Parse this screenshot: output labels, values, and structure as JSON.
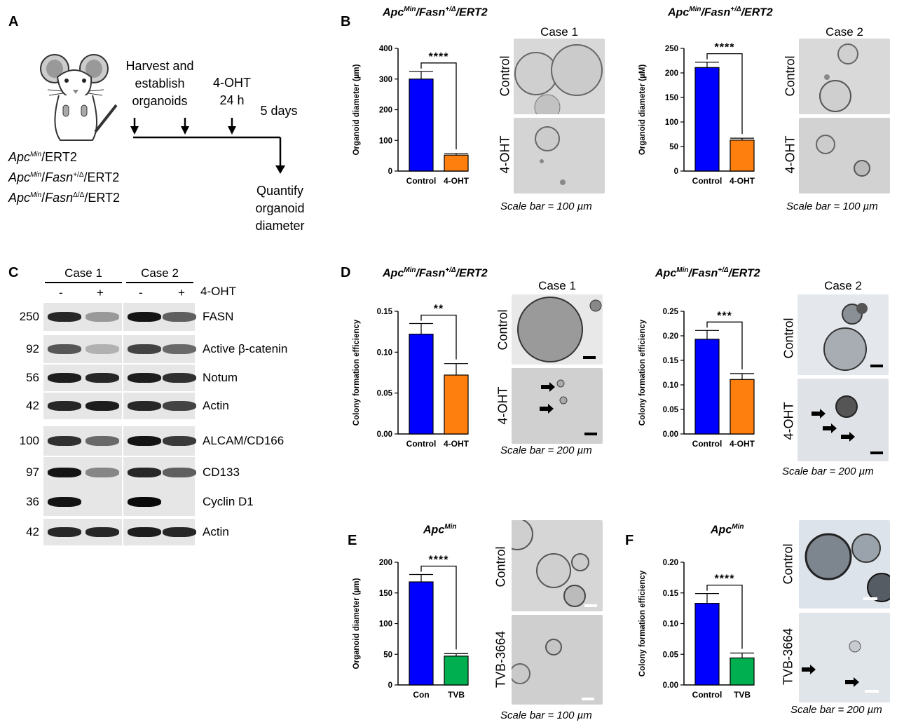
{
  "panels": {
    "A": "A",
    "B": "B",
    "C": "C",
    "D": "D",
    "E": "E",
    "F": "F"
  },
  "panel_a": {
    "steps": {
      "harvest": "Harvest and establish organoids",
      "oht": "4-OHT 24 h",
      "days": "5 days",
      "quantify": "Quantify organoid diameter"
    },
    "genotypes": [
      {
        "base": "Apc",
        "sup": "Min",
        "mid": "/ERT2",
        "fasn": "",
        "fsup": ""
      },
      {
        "base": "Apc",
        "sup": "Min",
        "mid": "/",
        "fasn": "Fasn",
        "fsup": "+/Δ",
        "tail": "/ERT2"
      },
      {
        "base": "Apc",
        "sup": "Min",
        "mid": "/",
        "fasn": "Fasn",
        "fsup": "Δ/Δ",
        "tail": "/ERT2"
      }
    ]
  },
  "titles": {
    "b1": {
      "a": "Apc",
      "as": "Min",
      "b": "/Fasn",
      "bs": "+/Δ",
      "c": "/ERT2"
    },
    "b2": {
      "a": "Apc",
      "as": "Min",
      "b": "/Fasn",
      "bs": "+/Δ",
      "c": "/ERT2"
    },
    "d1": {
      "a": "Apc",
      "as": "Min",
      "b": "/Fasn",
      "bs": "+/Δ",
      "c": "/ERT2"
    },
    "d2": {
      "a": "Apc",
      "as": "Min",
      "b": "/Fasn",
      "bs": "+/Δ",
      "c": "/ERT2"
    },
    "e": {
      "a": "Apc",
      "as": "Min"
    },
    "f": {
      "a": "Apc",
      "as": "Min"
    }
  },
  "cases": {
    "b1": "Case 1",
    "b2": "Case 2",
    "d1": "Case 1",
    "d2": "Case 2",
    "c1": "Case 1",
    "c2": "Case 2"
  },
  "micro_labels": {
    "control": "Control",
    "oht": "4-OHT",
    "tvb": "TVB-3664"
  },
  "scale_bars": {
    "b1": "Scale bar = 100 µm",
    "b2": "Scale bar = 100 µm",
    "d1": "Scale bar = 200 µm",
    "d2": "Scale bar = 200 µm",
    "e": "Scale bar = 100 µm",
    "f": "Scale bar = 200 µm"
  },
  "panel_c": {
    "signs": [
      "-",
      "+",
      "-",
      "+"
    ],
    "treatment": "4-OHT",
    "rows": [
      {
        "mw": "250",
        "label": "FASN",
        "i": [
          0.85,
          0.25,
          0.95,
          0.55
        ]
      },
      {
        "mw": "92",
        "label": "Active β-catenin",
        "i": [
          0.6,
          0.12,
          0.7,
          0.5
        ]
      },
      {
        "mw": "56",
        "label": "Notum",
        "i": [
          0.9,
          0.85,
          0.9,
          0.8
        ]
      },
      {
        "mw": "42",
        "label": "Actin",
        "i": [
          0.85,
          0.9,
          0.85,
          0.7
        ]
      },
      {
        "mw": "100",
        "label": "ALCAM/CD166",
        "i": [
          0.8,
          0.5,
          0.95,
          0.75
        ]
      },
      {
        "mw": "97",
        "label": "CD133",
        "i": [
          0.95,
          0.35,
          0.85,
          0.55
        ]
      },
      {
        "mw": "36",
        "label": "Cyclin D1",
        "i": [
          0.95,
          0.0,
          1.0,
          0.0
        ]
      },
      {
        "mw": "42",
        "label": "Actin",
        "i": [
          0.85,
          0.85,
          0.9,
          0.85
        ]
      }
    ]
  },
  "chart_data": [
    {
      "id": "B1",
      "type": "bar",
      "categories": [
        "Control",
        "4-OHT"
      ],
      "values": [
        300,
        52
      ],
      "errors": [
        25,
        5
      ],
      "colors": [
        "#0000ff",
        "#ff7f0e"
      ],
      "ylabel": "Organoid diameter (µm)",
      "ylim": [
        0,
        400
      ],
      "yticks": [
        0,
        100,
        200,
        300,
        400
      ],
      "significance": "****"
    },
    {
      "id": "B2",
      "type": "bar",
      "categories": [
        "Control",
        "4-OHT"
      ],
      "values": [
        211,
        63
      ],
      "errors": [
        11,
        4
      ],
      "colors": [
        "#0000ff",
        "#ff7f0e"
      ],
      "ylabel": "Organoid diameter (µM)",
      "ylim": [
        0,
        250
      ],
      "yticks": [
        0,
        50,
        100,
        150,
        200,
        250
      ],
      "significance": "****"
    },
    {
      "id": "D1",
      "type": "bar",
      "categories": [
        "Control",
        "4-OHT"
      ],
      "values": [
        0.122,
        0.072
      ],
      "errors": [
        0.013,
        0.014
      ],
      "colors": [
        "#0000ff",
        "#ff7f0e"
      ],
      "ylabel": "Colony formation efficiency",
      "ylim": [
        0,
        0.15
      ],
      "yticks": [
        "0.00",
        "0.05",
        "0.10",
        "0.15"
      ],
      "significance": "**"
    },
    {
      "id": "D2",
      "type": "bar",
      "categories": [
        "Control",
        "4-OHT"
      ],
      "values": [
        0.193,
        0.111
      ],
      "errors": [
        0.018,
        0.012
      ],
      "colors": [
        "#0000ff",
        "#ff7f0e"
      ],
      "ylabel": "Colony formation efficiency",
      "ylim": [
        0,
        0.25
      ],
      "yticks": [
        "0.00",
        "0.05",
        "0.10",
        "0.15",
        "0.20",
        "0.25"
      ],
      "significance": "***"
    },
    {
      "id": "E",
      "type": "bar",
      "categories": [
        "Con",
        "TVB"
      ],
      "values": [
        168,
        47
      ],
      "errors": [
        12,
        4
      ],
      "colors": [
        "#0000ff",
        "#00b050"
      ],
      "ylabel": "Organoid diameter (µm)",
      "ylim": [
        0,
        200
      ],
      "yticks": [
        0,
        50,
        100,
        150,
        200
      ],
      "significance": "****"
    },
    {
      "id": "F",
      "type": "bar",
      "categories": [
        "Control",
        "TVB"
      ],
      "values": [
        0.133,
        0.044
      ],
      "errors": [
        0.016,
        0.008
      ],
      "colors": [
        "#0000ff",
        "#00b050"
      ],
      "ylabel": "Colony formation efficiency",
      "ylim": [
        0,
        0.2
      ],
      "yticks": [
        "0.00",
        "0.05",
        "0.10",
        "0.15",
        "0.20"
      ],
      "significance": "****"
    }
  ]
}
